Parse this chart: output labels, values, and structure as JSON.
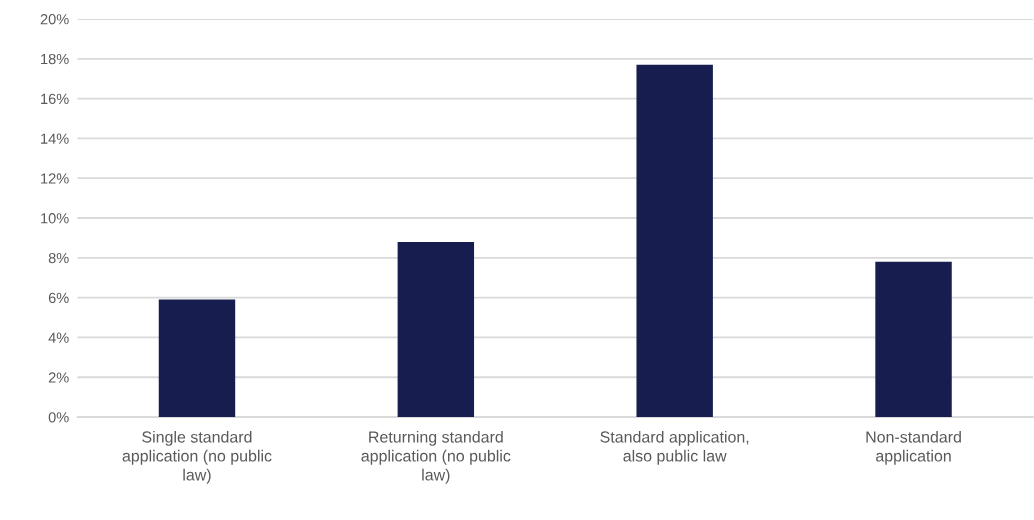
{
  "chart_data": {
    "type": "bar",
    "categories": [
      "Single standard\napplication (no public\nlaw)",
      "Returning standard\napplication (no public\nlaw)",
      "Standard application,\nalso public law",
      "Non-standard\napplication"
    ],
    "values": [
      5.9,
      8.8,
      17.7,
      7.8
    ],
    "color": "#171d4e",
    "ylim": [
      0,
      20
    ],
    "yticks": [
      {
        "value": 0,
        "label": "0%"
      },
      {
        "value": 2,
        "label": "2%"
      },
      {
        "value": 4,
        "label": "4%"
      },
      {
        "value": 6,
        "label": "6%"
      },
      {
        "value": 8,
        "label": "8%"
      },
      {
        "value": 10,
        "label": "10%"
      },
      {
        "value": 12,
        "label": "12%"
      },
      {
        "value": 14,
        "label": "14%"
      },
      {
        "value": 16,
        "label": "16%"
      },
      {
        "value": 18,
        "label": "18%"
      },
      {
        "value": 20,
        "label": "20%"
      }
    ],
    "grid": "y",
    "legend": false
  }
}
